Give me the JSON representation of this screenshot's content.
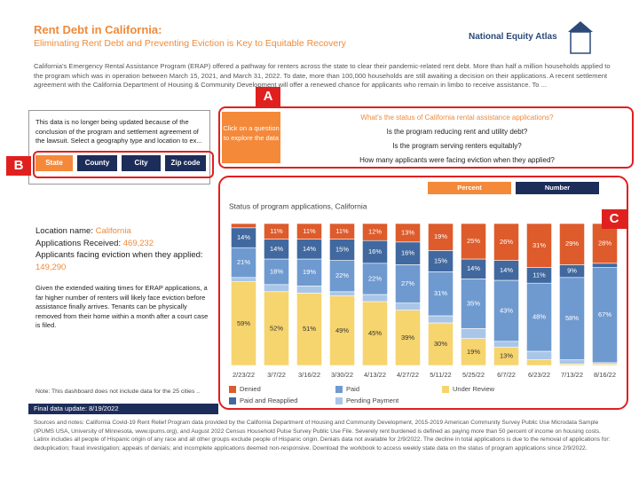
{
  "header": {
    "title": "Rent Debt in California:",
    "subtitle": "Eliminating Rent Debt and Preventing Eviction is Key to Equitable Recovery",
    "brand": "National Equity Atlas"
  },
  "intro": "California's Emergency Rental Assistance Program (ERAP) offered a pathway for renters across the state to clear their pandemic-related rent debt. More than half a million households applied to the program which was in operation between March 15, 2021, and March 31, 2022. To date, more than 100,000 households are still awaiting a decision on their applications. A recent settlement agreement with the California Department of Housing & Community Development will offer a renewed chance for applicants who remain in limbo to receive assistance. To ...",
  "annotations": [
    "A",
    "B",
    "C"
  ],
  "notice": "This data is no longer being updated because of the conclusion of the program and settlement agreement of the lawsuit. Select a geography type and location to ex...",
  "geo_buttons": [
    "State",
    "County",
    "City",
    "Zip code"
  ],
  "prompt": "Click on a question to explore the data",
  "questions": [
    "What's the status of California rental assistance applications?",
    "Is the program reducing rent and utility debt?",
    "Is the program serving renters equitably?",
    "How many applicants were facing eviction when they applied?"
  ],
  "location": {
    "name_label": "Location name:",
    "name": "California",
    "received_label": "Applications Received:",
    "received": "469,232",
    "facing_label": "Applicants facing eviction when they applied:",
    "facing": "149,290"
  },
  "eviction_note": "Given the extended waiting times for ERAP applications, a far higher number of renters will likely face eviction before assistance finally arrives. Tenants can be physically removed from their home within a month after a court case is filed.",
  "data_note": "Note: This dashboard does not include data for the 25 cities ..",
  "final_update": "Final data update: 8/19/2022",
  "sources": "Sources and notes: California Covid-19 Rent Relief Program data provided by the California Department of Housing and Community Development, 2015-2019 American Community Survey Public Use Microdata Sample (IPUMS USA, University of Minnesota, www.ipums.org), and August 2022 Census Household Pulse Survey Public Use File. Severely rent burdened is defined as paying more than 50 percent of income on housing costs. Latinx includes all people of Hispanic origin of any race and all other groups exclude people of Hispanic origin. Denials data not available for 2/9/2022. The decline in total applications is due to the removal of applications for: deduplication; fraud investigation; appeals of denials; and incomplete applications deemed non-responsive. Download the workbook to access weekly state data on the status of program applications since 2/9/2022.",
  "toggle": [
    "Percent",
    "Number"
  ],
  "chart_data": {
    "type": "stacked_bar",
    "title": "Status of program applications, California",
    "categories": [
      "2/23/22",
      "3/7/22",
      "3/16/22",
      "3/30/22",
      "4/13/22",
      "4/27/22",
      "5/11/22",
      "5/25/22",
      "6/7/22",
      "6/23/22",
      "7/13/22",
      "8/16/22"
    ],
    "ylim": [
      0,
      100
    ],
    "series": [
      {
        "name": "Under Review",
        "color": "#f6d46e",
        "values": [
          59,
          52,
          51,
          49,
          45,
          39,
          30,
          19,
          13,
          4,
          1,
          1
        ],
        "value_labels": [
          "59%",
          "52%",
          "51%",
          "49%",
          "45%",
          "39%",
          "30%",
          "19%",
          "13%",
          null,
          null,
          null
        ]
      },
      {
        "name": "Pending Payment",
        "color": "#a9c6e8",
        "values": [
          3,
          5,
          5,
          3,
          5,
          5,
          5,
          7,
          4,
          6,
          3,
          1
        ],
        "value_labels": [
          null,
          null,
          null,
          null,
          null,
          null,
          null,
          null,
          null,
          null,
          null,
          null
        ]
      },
      {
        "name": "Paid",
        "color": "#6f9ad0",
        "values": [
          21,
          18,
          19,
          22,
          22,
          27,
          31,
          35,
          43,
          48,
          58,
          67
        ],
        "value_labels": [
          "21%",
          "18%",
          "19%",
          "22%",
          "22%",
          "27%",
          "31%",
          "35%",
          "43%",
          "48%",
          "58%",
          "67%"
        ]
      },
      {
        "name": "Paid and Reapplied",
        "color": "#41699f",
        "values": [
          14,
          14,
          14,
          15,
          16,
          16,
          15,
          14,
          14,
          11,
          9,
          3
        ],
        "value_labels": [
          "14%",
          "14%",
          "14%",
          "15%",
          "16%",
          "16%",
          "15%",
          "14%",
          "14%",
          "11%",
          "9%",
          null
        ]
      },
      {
        "name": "Denied",
        "color": "#de5b2c",
        "values": [
          3,
          11,
          11,
          11,
          12,
          13,
          19,
          25,
          26,
          31,
          29,
          28
        ],
        "value_labels": [
          null,
          "11%",
          "11%",
          "11%",
          "12%",
          "13%",
          "19%",
          "25%",
          "26%",
          "31%",
          "29%",
          "28%"
        ]
      }
    ]
  }
}
